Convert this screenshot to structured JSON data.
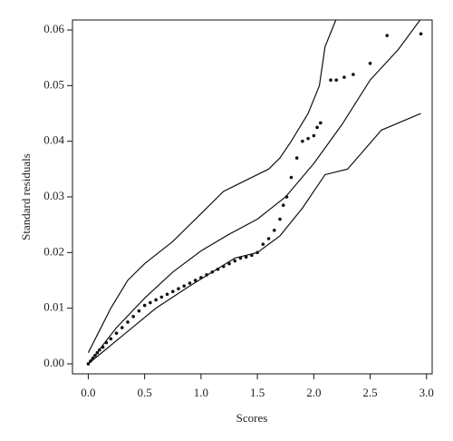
{
  "chart_data": {
    "type": "scatter",
    "x_label": "Scores",
    "y_label": "Standard residuals",
    "xlim": [
      -0.14,
      3.05
    ],
    "ylim": [
      -0.0018,
      0.0618
    ],
    "xticks": [
      {
        "value": 0,
        "label": "0.0"
      },
      {
        "value": 0.5,
        "label": "0.5"
      },
      {
        "value": 1,
        "label": "1.0"
      },
      {
        "value": 1.5,
        "label": "1.5"
      },
      {
        "value": 2,
        "label": "2.0"
      },
      {
        "value": 2.5,
        "label": "2.5"
      },
      {
        "value": 3,
        "label": "3.0"
      }
    ],
    "yticks": [
      {
        "value": 0,
        "label": "0.00"
      },
      {
        "value": 0.01,
        "label": "0.01"
      },
      {
        "value": 0.02,
        "label": "0.02"
      },
      {
        "value": 0.03,
        "label": "0.03"
      },
      {
        "value": 0.04,
        "label": "0.04"
      },
      {
        "value": 0.05,
        "label": "0.05"
      },
      {
        "value": 0.06,
        "label": "0.06"
      }
    ],
    "color": "#111111",
    "points": {
      "x": [
        0,
        0.02,
        0.04,
        0.06,
        0.08,
        0.1,
        0.13,
        0.16,
        0.2,
        0.25,
        0.3,
        0.35,
        0.4,
        0.45,
        0.5,
        0.55,
        0.6,
        0.65,
        0.7,
        0.75,
        0.8,
        0.85,
        0.9,
        0.95,
        1.0,
        1.05,
        1.1,
        1.15,
        1.2,
        1.25,
        1.3,
        1.35,
        1.4,
        1.45,
        1.5,
        1.55,
        1.6,
        1.65,
        1.7,
        1.73,
        1.76,
        1.8,
        1.85,
        1.9,
        1.95,
        2.0,
        2.03,
        2.06,
        2.15,
        2.2,
        2.27,
        2.35,
        2.5,
        2.65,
        2.95
      ],
      "y": [
        0,
        0.0005,
        0.001,
        0.0015,
        0.002,
        0.0025,
        0.003,
        0.0038,
        0.0045,
        0.0055,
        0.0065,
        0.0075,
        0.0085,
        0.0095,
        0.0105,
        0.011,
        0.0115,
        0.012,
        0.0125,
        0.013,
        0.0135,
        0.014,
        0.0145,
        0.015,
        0.0155,
        0.016,
        0.0165,
        0.017,
        0.0175,
        0.018,
        0.0185,
        0.019,
        0.0192,
        0.0195,
        0.02,
        0.0215,
        0.0225,
        0.024,
        0.026,
        0.0285,
        0.03,
        0.0335,
        0.037,
        0.04,
        0.0405,
        0.041,
        0.0425,
        0.0433,
        0.051,
        0.051,
        0.0515,
        0.052,
        0.054,
        0.059,
        0.0593
      ]
    },
    "lines": [
      {
        "x": [
          0,
          0.1,
          0.2,
          0.35,
          0.5,
          0.75,
          1.0,
          1.2,
          1.5,
          1.6,
          1.7,
          1.8,
          1.95,
          2.05,
          2.1,
          2.2
        ],
        "y": [
          0.002,
          0.006,
          0.01,
          0.015,
          0.018,
          0.022,
          0.027,
          0.031,
          0.034,
          0.035,
          0.037,
          0.04,
          0.045,
          0.05,
          0.057,
          0.062
        ]
      },
      {
        "x": [
          0,
          0.25,
          0.5,
          0.75,
          1.0,
          1.25,
          1.5,
          1.75,
          2.0,
          2.25,
          2.5,
          2.75,
          2.95
        ],
        "y": [
          0,
          0.0065,
          0.0118,
          0.0165,
          0.0203,
          0.0233,
          0.026,
          0.03,
          0.036,
          0.043,
          0.051,
          0.0565,
          0.062
        ]
      },
      {
        "x": [
          0,
          0.15,
          0.3,
          0.6,
          0.9,
          1.3,
          1.5,
          1.6,
          1.7,
          1.9,
          2.1,
          2.3,
          2.6,
          2.95
        ],
        "y": [
          0,
          0.0025,
          0.005,
          0.01,
          0.014,
          0.019,
          0.02,
          0.0215,
          0.023,
          0.028,
          0.034,
          0.035,
          0.042,
          0.045
        ]
      }
    ]
  }
}
